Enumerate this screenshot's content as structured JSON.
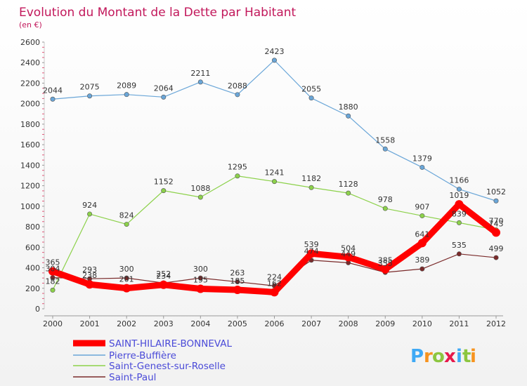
{
  "chart_data": {
    "type": "line",
    "title": "Evolution du Montant de la Dette par Habitant",
    "subtitle": "(en €)",
    "xlabel": "",
    "ylabel": "",
    "x": [
      "2000",
      "2001",
      "2002",
      "2003",
      "2004",
      "2005",
      "2006",
      "2007",
      "2008",
      "2009",
      "2010",
      "2011",
      "2012"
    ],
    "ylim": [
      0,
      2600
    ],
    "yticks": [
      "0",
      "200",
      "400",
      "600",
      "800",
      "1000",
      "1200",
      "1400",
      "1600",
      "1800",
      "2000",
      "2200",
      "2400",
      "2600"
    ],
    "grid": false,
    "legend_position": "bottom-left",
    "series": [
      {
        "name": "SAINT-HILAIRE-BONNEVAL",
        "color": "#ff0000",
        "values": [
          365,
          238,
          201,
          234,
          195,
          185,
          162,
          539,
          504,
          385,
          641,
          1019,
          743
        ],
        "labels": [
          "365",
          "238",
          "201",
          "234",
          "195",
          "185",
          "162",
          "539",
          "504",
          "385",
          "641",
          "1019",
          "743"
        ]
      },
      {
        "name": "Pierre-Buffière",
        "color": "#6aa6d8",
        "values": [
          2044,
          2075,
          2089,
          2064,
          2211,
          2088,
          2423,
          2055,
          1880,
          1558,
          1379,
          1166,
          1052
        ],
        "labels": [
          "2044",
          "2075",
          "2089",
          "2064",
          "2211",
          "2088",
          "2423",
          "2055",
          "1880",
          "1558",
          "1379",
          "1166",
          "1052"
        ]
      },
      {
        "name": "Saint-Genest-sur-Roselle",
        "color": "#8cd14a",
        "values": [
          182,
          924,
          824,
          1152,
          1088,
          1295,
          1241,
          1182,
          1128,
          978,
          907,
          839,
          770
        ],
        "labels": [
          "182",
          "924",
          "824",
          "1152",
          "1088",
          "1295",
          "1241",
          "1182",
          "1128",
          "978",
          "907",
          "839",
          "770"
        ]
      },
      {
        "name": "Saint-Paul",
        "color": "#7a2a2a",
        "values": [
          304,
          293,
          300,
          252,
          300,
          263,
          224,
          474,
          449,
          355,
          389,
          535,
          499
        ],
        "labels": [
          "304",
          "293",
          "300",
          "252",
          "300",
          "263",
          "224",
          "474",
          "449",
          "355",
          "389",
          "535",
          "499"
        ]
      }
    ]
  },
  "logo": {
    "letters": [
      "P",
      "r",
      "o",
      "x",
      "i",
      "t",
      "i"
    ],
    "colors": [
      "#3fa9f5",
      "#f7931e",
      "#8cc63f",
      "#e6194b",
      "#3fa9f5",
      "#8cc63f",
      "#f7931e"
    ]
  }
}
